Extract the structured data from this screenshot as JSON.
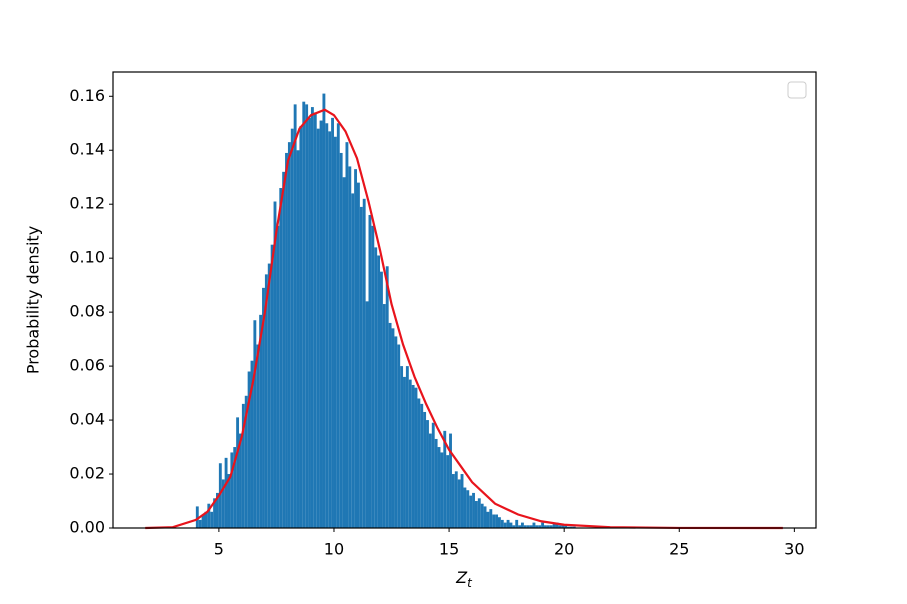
{
  "chart_data": {
    "type": "histogram",
    "xlabel": "Z",
    "xlabel_subscript": "t",
    "ylabel": "Probability density",
    "color": "#1f77b4",
    "bins": [
      4,
      4.125,
      4.25,
      4.375,
      4.5,
      4.625,
      4.75,
      4.875,
      5,
      5.125,
      5.25,
      5.375,
      5.5,
      5.625,
      5.75,
      5.875,
      6,
      6.125,
      6.25,
      6.375,
      6.5,
      6.625,
      6.75,
      6.875,
      7,
      7.125,
      7.25,
      7.375,
      7.5,
      7.625,
      7.75,
      7.875,
      8,
      8.125,
      8.25,
      8.375,
      8.5,
      8.625,
      8.75,
      8.875,
      9,
      9.125,
      9.25,
      9.375,
      9.5,
      9.625,
      9.75,
      9.875,
      10,
      10.125,
      10.25,
      10.375,
      10.5,
      10.625,
      10.75,
      10.875,
      11,
      11.125,
      11.25,
      11.375,
      11.5,
      11.625,
      11.75,
      11.875,
      12,
      12.125,
      12.25,
      12.375,
      12.5,
      12.625,
      12.75,
      12.875,
      13,
      13.125,
      13.25,
      13.375,
      13.5,
      13.625,
      13.75,
      13.875,
      14,
      14.125,
      14.25,
      14.375,
      14.5,
      14.625,
      14.75,
      14.875,
      15,
      15.125,
      15.25,
      15.375,
      15.5,
      15.625,
      15.75,
      15.875,
      16,
      16.125,
      16.25,
      16.375,
      16.5,
      16.625,
      16.75,
      16.875,
      17,
      17.125,
      17.25,
      17.375,
      17.5,
      17.625,
      17.75,
      17.875,
      18,
      18.125,
      18.25,
      18.375,
      18.5,
      18.625,
      18.75,
      18.875,
      19,
      19.125,
      19.25,
      19.375,
      19.5,
      19.625,
      19.75,
      19.875,
      20,
      20.125,
      20.25,
      20.375,
      20.5
    ],
    "values": [
      0.008,
      0.003,
      0.005,
      0.006,
      0.009,
      0.006,
      0.011,
      0.013,
      0.024,
      0.018,
      0.026,
      0.02,
      0.028,
      0.03,
      0.041,
      0.035,
      0.046,
      0.049,
      0.058,
      0.062,
      0.077,
      0.068,
      0.079,
      0.089,
      0.094,
      0.098,
      0.105,
      0.121,
      0.112,
      0.126,
      0.132,
      0.139,
      0.143,
      0.148,
      0.157,
      0.14,
      0.149,
      0.158,
      0.157,
      0.152,
      0.156,
      0.154,
      0.148,
      0.151,
      0.161,
      0.15,
      0.147,
      0.152,
      0.145,
      0.15,
      0.139,
      0.13,
      0.143,
      0.134,
      0.124,
      0.133,
      0.128,
      0.119,
      0.122,
      0.084,
      0.116,
      0.112,
      0.104,
      0.101,
      0.095,
      0.083,
      0.097,
      0.076,
      0.074,
      0.071,
      0.068,
      0.06,
      0.056,
      0.06,
      0.055,
      0.053,
      0.052,
      0.048,
      0.046,
      0.043,
      0.04,
      0.035,
      0.039,
      0.033,
      0.03,
      0.028,
      0.036,
      0.027,
      0.035,
      0.02,
      0.021,
      0.018,
      0.02,
      0.015,
      0.014,
      0.012,
      0.013,
      0.01,
      0.011,
      0.009,
      0.008,
      0.006,
      0.007,
      0.005,
      0.005,
      0.004,
      0.003,
      0.002,
      0.003,
      0.002,
      0.001,
      0.003,
      0.001,
      0.002,
      0.001,
      0.001,
      0.001,
      0.002,
      0.001,
      0.001,
      0.002,
      0.001,
      0.001,
      0.001,
      0.002,
      0.002,
      0.001,
      0.001,
      0.001,
      0.0005,
      0.0005,
      0.0005
    ],
    "curve": {
      "type": "line",
      "color": "#e8141c",
      "x": [
        1.8,
        3,
        4,
        4.5,
        5,
        5.5,
        6,
        6.5,
        7,
        7.5,
        8,
        8.5,
        9,
        9.6,
        10,
        10.5,
        11,
        11.5,
        12,
        12.5,
        13,
        13.5,
        14,
        14.5,
        15,
        15.5,
        16,
        16.5,
        17,
        18,
        19,
        20,
        22,
        25,
        29.5
      ],
      "values": [
        0,
        0.0003,
        0.003,
        0.006,
        0.012,
        0.019,
        0.034,
        0.055,
        0.08,
        0.11,
        0.136,
        0.148,
        0.153,
        0.155,
        0.153,
        0.147,
        0.137,
        0.121,
        0.103,
        0.083,
        0.068,
        0.056,
        0.046,
        0.037,
        0.029,
        0.023,
        0.017,
        0.013,
        0.009,
        0.005,
        0.0025,
        0.0012,
        0.0003,
        3e-05,
        0
      ]
    },
    "xlim": [
      0.4,
      30.94
    ],
    "ylim": [
      0,
      0.169
    ],
    "xticks": [
      5,
      10,
      15,
      20,
      25,
      30
    ],
    "yticks": [
      {
        "value": 0,
        "label": "0.00"
      },
      {
        "value": 0.02,
        "label": "0.02"
      },
      {
        "value": 0.04,
        "label": "0.04"
      },
      {
        "value": 0.06,
        "label": "0.06"
      },
      {
        "value": 0.08,
        "label": "0.08"
      },
      {
        "value": 0.1,
        "label": "0.10"
      },
      {
        "value": 0.12,
        "label": "0.12"
      },
      {
        "value": 0.14,
        "label": "0.14"
      },
      {
        "value": 0.16,
        "label": "0.16"
      }
    ],
    "legend": "upper right"
  }
}
